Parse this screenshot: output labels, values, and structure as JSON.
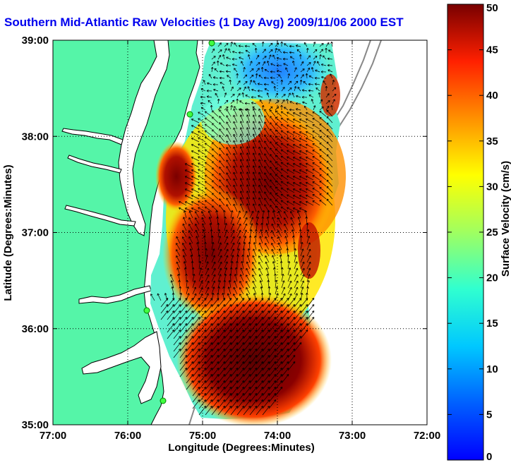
{
  "title": "Southern Mid-Atlantic Raw Velocities (1 Day Avg) 2009/11/06 2000 EST",
  "chart_data": {
    "type": "map",
    "xlabel": "Longitude (Degrees:Minutes)",
    "ylabel": "Latitude (Degrees:Minutes)",
    "x_ticks": [
      "77:00",
      "76:00",
      "75:00",
      "74:00",
      "73:00",
      "72:00"
    ],
    "y_ticks": [
      "39:00",
      "38:00",
      "37:00",
      "36:00",
      "35:00"
    ],
    "xlim": [
      -77,
      -72
    ],
    "ylim": [
      35,
      39
    ],
    "grid": true,
    "colorbar": {
      "label": "Surface Velocity (cm/s)",
      "min": 0,
      "max": 50,
      "ticks": [
        "0",
        "5",
        "10",
        "15",
        "20",
        "25",
        "30",
        "35",
        "40",
        "45",
        "50"
      ],
      "colormap": "jet"
    },
    "colors": {
      "land": "#55f5a8",
      "water": "#ffffff",
      "coastline": "#000000",
      "shelf_contour": "#888888",
      "title": "#0000ee"
    }
  }
}
